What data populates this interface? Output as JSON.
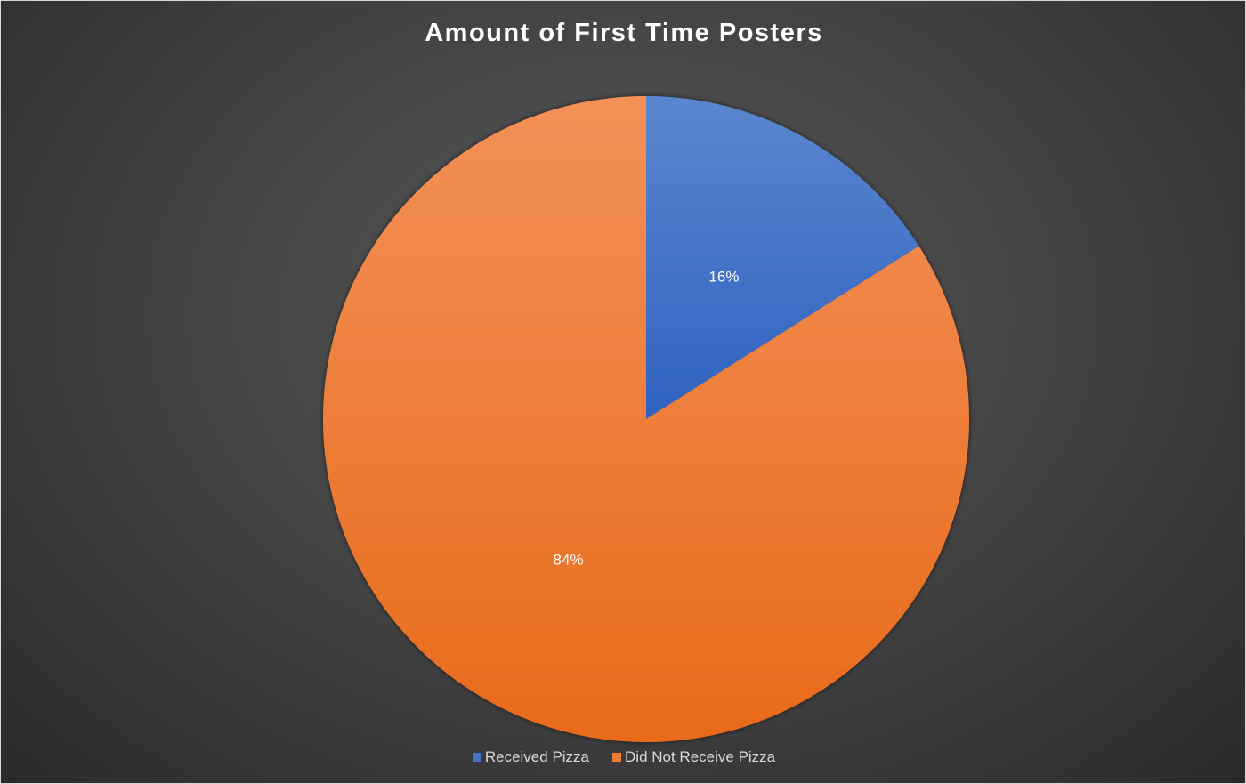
{
  "chart_data": {
    "type": "pie",
    "title": "Amount of First Time Posters",
    "slices": [
      {
        "label": "Received Pizza",
        "value": 16,
        "display": "16%",
        "color": "#4472c4"
      },
      {
        "label": "Did Not Receive Pizza",
        "value": 84,
        "display": "84%",
        "color": "#ed7d31"
      }
    ],
    "start_angle_deg": 0,
    "direction": "clockwise",
    "legend": {
      "position": "bottom",
      "items": [
        "Received Pizza",
        "Did Not Receive Pizza"
      ]
    }
  }
}
